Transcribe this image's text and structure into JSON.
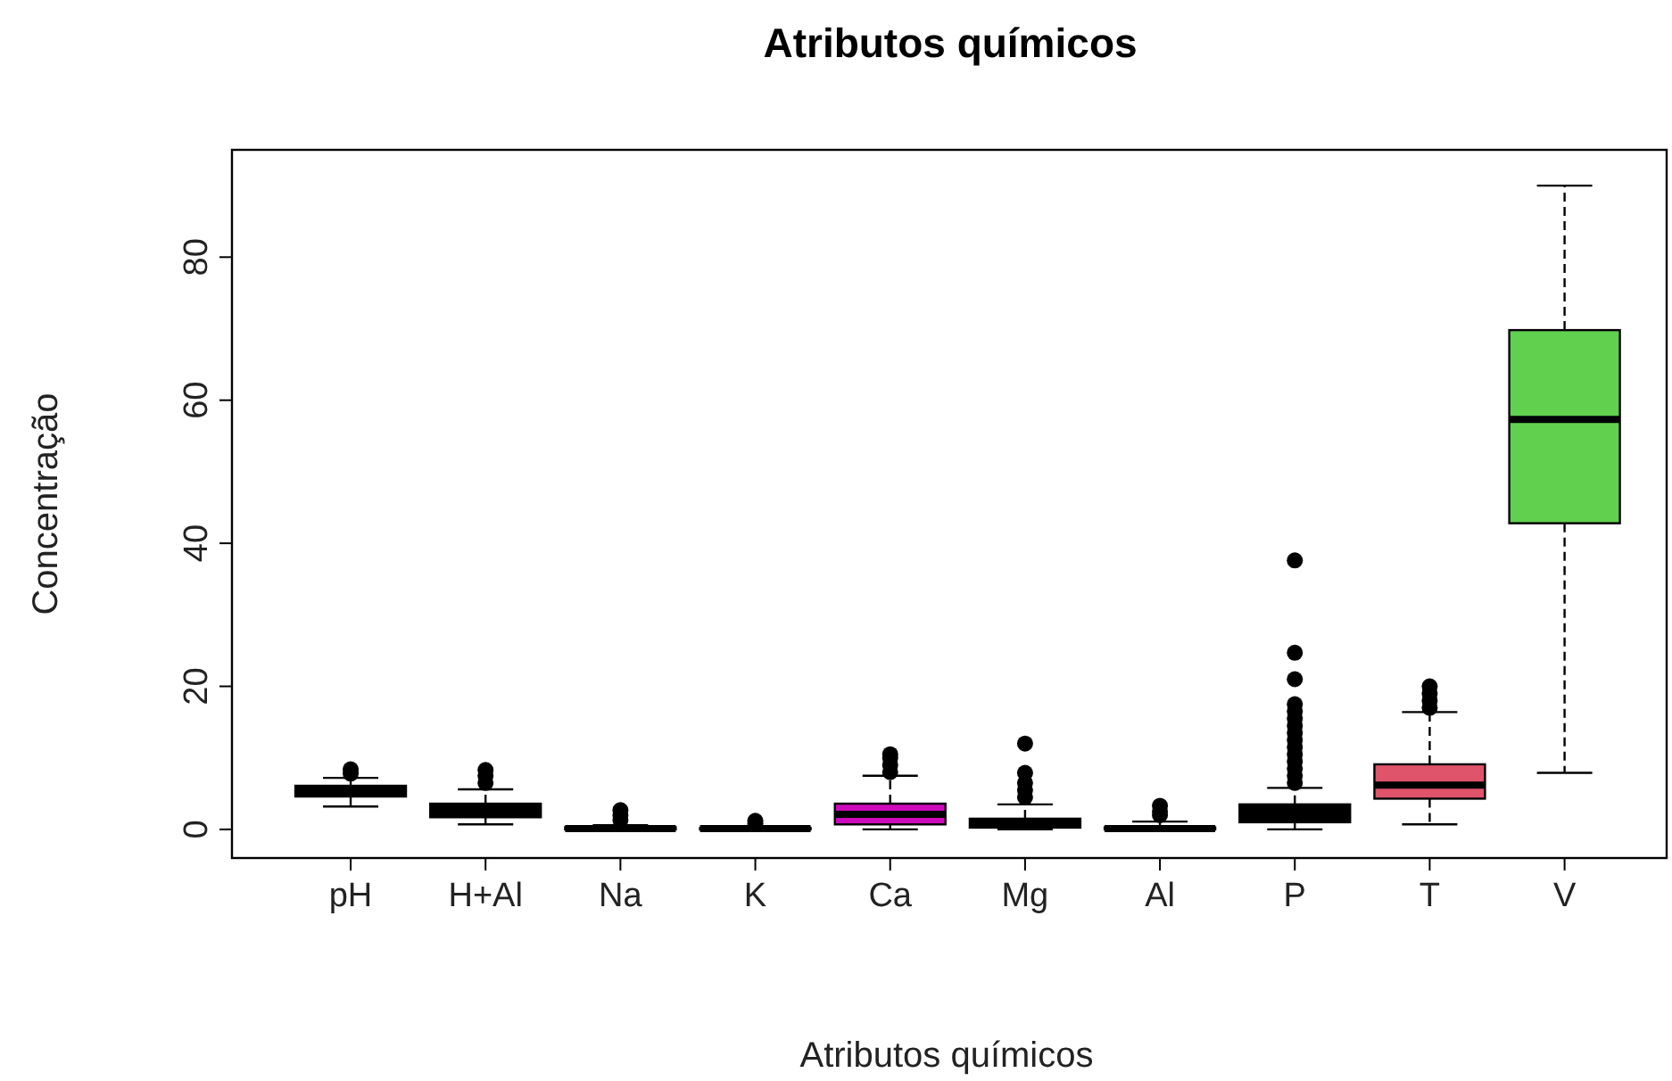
{
  "chart_data": {
    "type": "box",
    "title": "Atributos químicos",
    "xlabel": "Atributos químicos",
    "ylabel": "Concentração",
    "categories": [
      "pH",
      "H+Al",
      "Na",
      "K",
      "Ca",
      "Mg",
      "Al",
      "P",
      "T",
      "V"
    ],
    "colors": [
      "#000000",
      "#000000",
      "#000000",
      "#000000",
      "#cd0bbc",
      "#000000",
      "#000000",
      "#000000",
      "#df536b",
      "#61d04f"
    ],
    "boxes": [
      {
        "low": 3.2,
        "q1": 4.6,
        "median": 5.4,
        "q3": 6.1,
        "high": 7.2,
        "outliers": [
          7.8,
          8.4
        ]
      },
      {
        "low": 0.7,
        "q1": 1.7,
        "median": 2.6,
        "q3": 3.6,
        "high": 5.6,
        "outliers": [
          6.5,
          7.5,
          8.3
        ]
      },
      {
        "low": 0,
        "q1": 0,
        "median": 0.1,
        "q3": 0.3,
        "high": 0.6,
        "outliers": [
          1.3,
          2,
          2.7
        ]
      },
      {
        "low": 0,
        "q1": 0,
        "median": 0.1,
        "q3": 0.2,
        "high": 0.4,
        "outliers": [
          0.8,
          1.2
        ]
      },
      {
        "low": 0,
        "q1": 0.7,
        "median": 2.1,
        "q3": 3.6,
        "high": 7.5,
        "outliers": [
          8,
          9,
          10,
          10.5
        ]
      },
      {
        "low": 0,
        "q1": 0.25,
        "median": 0.8,
        "q3": 1.5,
        "high": 3.5,
        "outliers": [
          4.5,
          5.5,
          6.5,
          7.9,
          12
        ]
      },
      {
        "low": 0,
        "q1": 0,
        "median": 0.1,
        "q3": 0.3,
        "high": 1.1,
        "outliers": [
          2,
          2.5,
          3.3
        ]
      },
      {
        "low": 0,
        "q1": 1,
        "median": 2.3,
        "q3": 3.5,
        "high": 5.8,
        "outliers": [
          6.5,
          7.5,
          8.5,
          9.5,
          10.5,
          11.5,
          12.5,
          13.5,
          14.5,
          15.5,
          16.5,
          17.5,
          21,
          24.7,
          37.6
        ]
      },
      {
        "low": 0.7,
        "q1": 4.3,
        "median": 6.2,
        "q3": 9.1,
        "high": 16.4,
        "outliers": [
          17,
          18,
          19,
          20
        ]
      },
      {
        "low": 7.9,
        "q1": 42.8,
        "median": 57.3,
        "q3": 69.8,
        "high": 90
      }
    ],
    "ylim": [
      -4,
      95
    ],
    "yticks": [
      0,
      20,
      40,
      60,
      80
    ]
  }
}
